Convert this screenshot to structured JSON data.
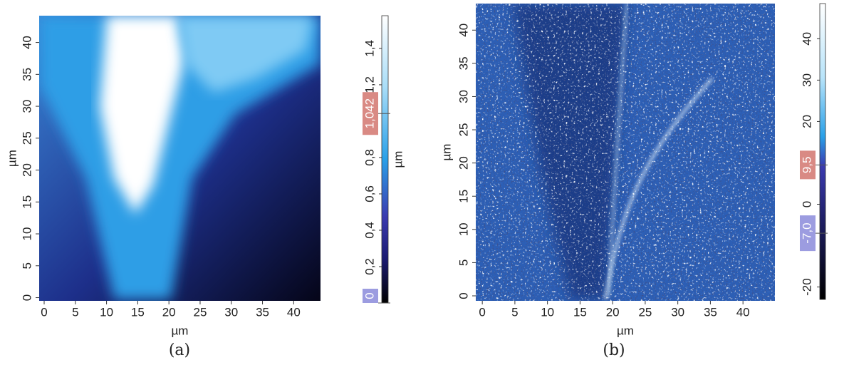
{
  "chart_data": [
    {
      "type": "image",
      "caption": "(a)",
      "xlabel": "µm",
      "ylabel": "µm",
      "xlim": [
        -0.8,
        44.3
      ],
      "ylim": [
        -0.5,
        44.2
      ],
      "xticks": [
        0,
        5,
        10,
        15,
        20,
        25,
        30,
        35,
        40
      ],
      "yticks": [
        0,
        5,
        10,
        15,
        20,
        25,
        30,
        35,
        40
      ],
      "colorbar": {
        "label": "µm",
        "ylim": [
          0,
          1.58
        ],
        "yticks": [
          {
            "value": 0.2,
            "label": "0,2"
          },
          {
            "value": 0.4,
            "label": "0,4"
          },
          {
            "value": 0.6,
            "label": "0,6"
          },
          {
            "value": 0.8,
            "label": "0,8"
          },
          {
            "value": 1.2,
            "label": "1,2"
          },
          {
            "value": 1.4,
            "label": "1,4"
          }
        ],
        "markers": [
          {
            "value": 1.042,
            "label": "1,042",
            "color": "#d98a84"
          },
          {
            "value": 0,
            "label": "0",
            "color": "#9c9ce0"
          }
        ]
      }
    },
    {
      "type": "image",
      "caption": "(b)",
      "xlabel": "µm",
      "ylabel": "µm",
      "xlim": [
        -1,
        44.9
      ],
      "ylim": [
        -0.75,
        44
      ],
      "xticks": [
        0,
        5,
        10,
        15,
        20,
        25,
        30,
        35,
        40
      ],
      "yticks": [
        0,
        5,
        10,
        15,
        20,
        25,
        30,
        35,
        40
      ],
      "colorbar": {
        "ylim": [
          -23,
          48.5
        ],
        "yticks": [
          -20,
          0,
          20,
          30,
          40
        ],
        "markers": [
          {
            "value": 9.5,
            "label": "9,5",
            "color": "#d98a84"
          },
          {
            "value": -7,
            "label": "-7,0",
            "color": "#9c9ce0"
          }
        ]
      }
    }
  ]
}
